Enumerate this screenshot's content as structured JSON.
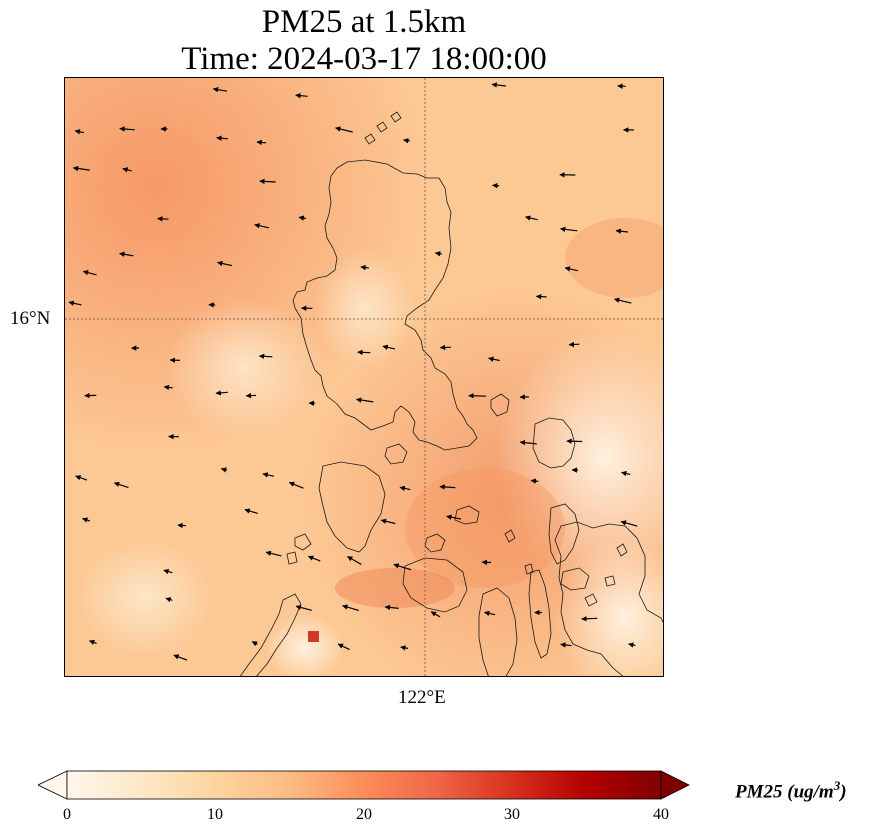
{
  "title": {
    "line1": "PM25 at 1.5km",
    "line2": "Time: 2024-03-17 18:00:00"
  },
  "map": {
    "lat_label": "16°N",
    "lon_label": "122°E",
    "gridline_color": "#8a6a55",
    "coastline_color": "#1a1a1a",
    "wind_arrow_color": "#000000",
    "field_colormap": "OrRd",
    "field_hotspot_color": "#d03a28"
  },
  "colorbar": {
    "ticks": [
      "0",
      "10",
      "20",
      "30",
      "40"
    ],
    "label_main": "PM25 (ug/m",
    "label_exp": "3",
    "label_close": ")",
    "colors": [
      "#fff7ec",
      "#fee8c8",
      "#fdd49e",
      "#fdbb84",
      "#fc8d59",
      "#ef6548",
      "#d7301f",
      "#b30000",
      "#7f0000"
    ]
  }
}
